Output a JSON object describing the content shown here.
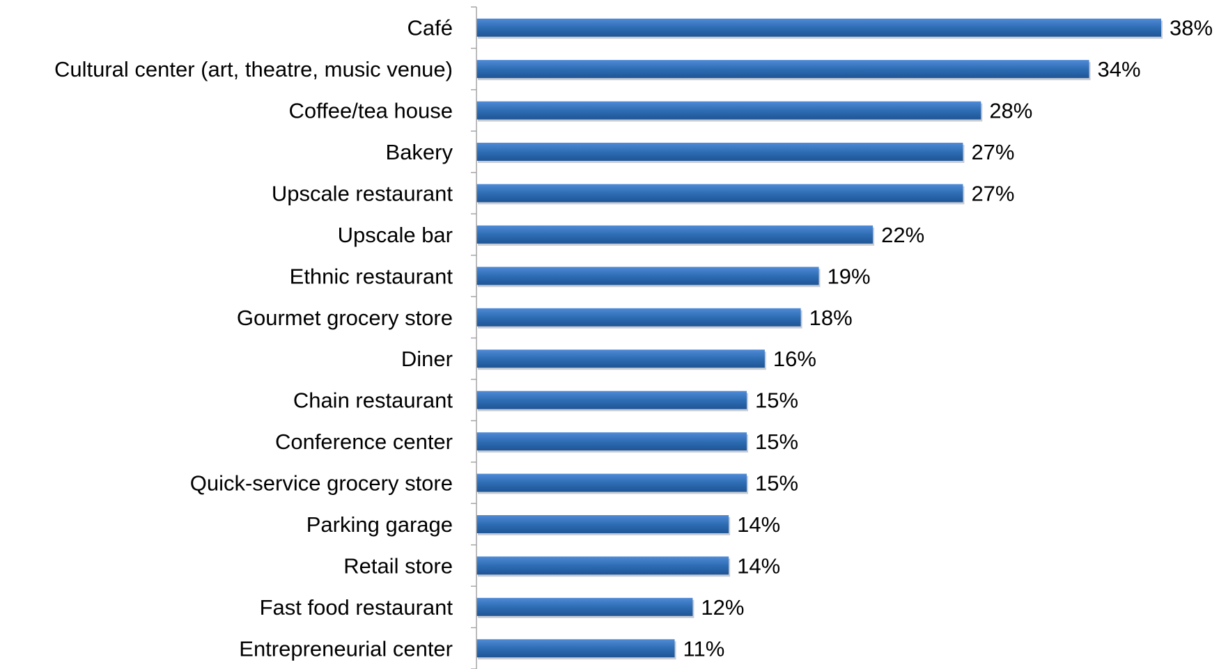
{
  "chart_data": {
    "type": "bar",
    "orientation": "horizontal",
    "categories": [
      "Café",
      "Cultural center (art, theatre, music venue)",
      "Coffee/tea house",
      "Bakery",
      "Upscale restaurant",
      "Upscale bar",
      "Ethnic restaurant",
      "Gourmet grocery store",
      "Diner",
      "Chain restaurant",
      "Conference center",
      "Quick-service grocery store",
      "Parking garage",
      "Retail store",
      "Fast food restaurant",
      "Entrepreneurial center"
    ],
    "values": [
      38,
      34,
      28,
      27,
      27,
      22,
      19,
      18,
      16,
      15,
      15,
      15,
      14,
      14,
      12,
      11
    ],
    "value_labels": [
      "38%",
      "34%",
      "28%",
      "27%",
      "27%",
      "22%",
      "19%",
      "18%",
      "16%",
      "15%",
      "15%",
      "15%",
      "14%",
      "14%",
      "12%",
      "11%"
    ],
    "title": "",
    "xlabel": "",
    "ylabel": "",
    "xlim": [
      0,
      38
    ],
    "grid": false,
    "legend": "none",
    "bar_color": "#2e6db4",
    "axis_color": "#a6a6a6"
  }
}
